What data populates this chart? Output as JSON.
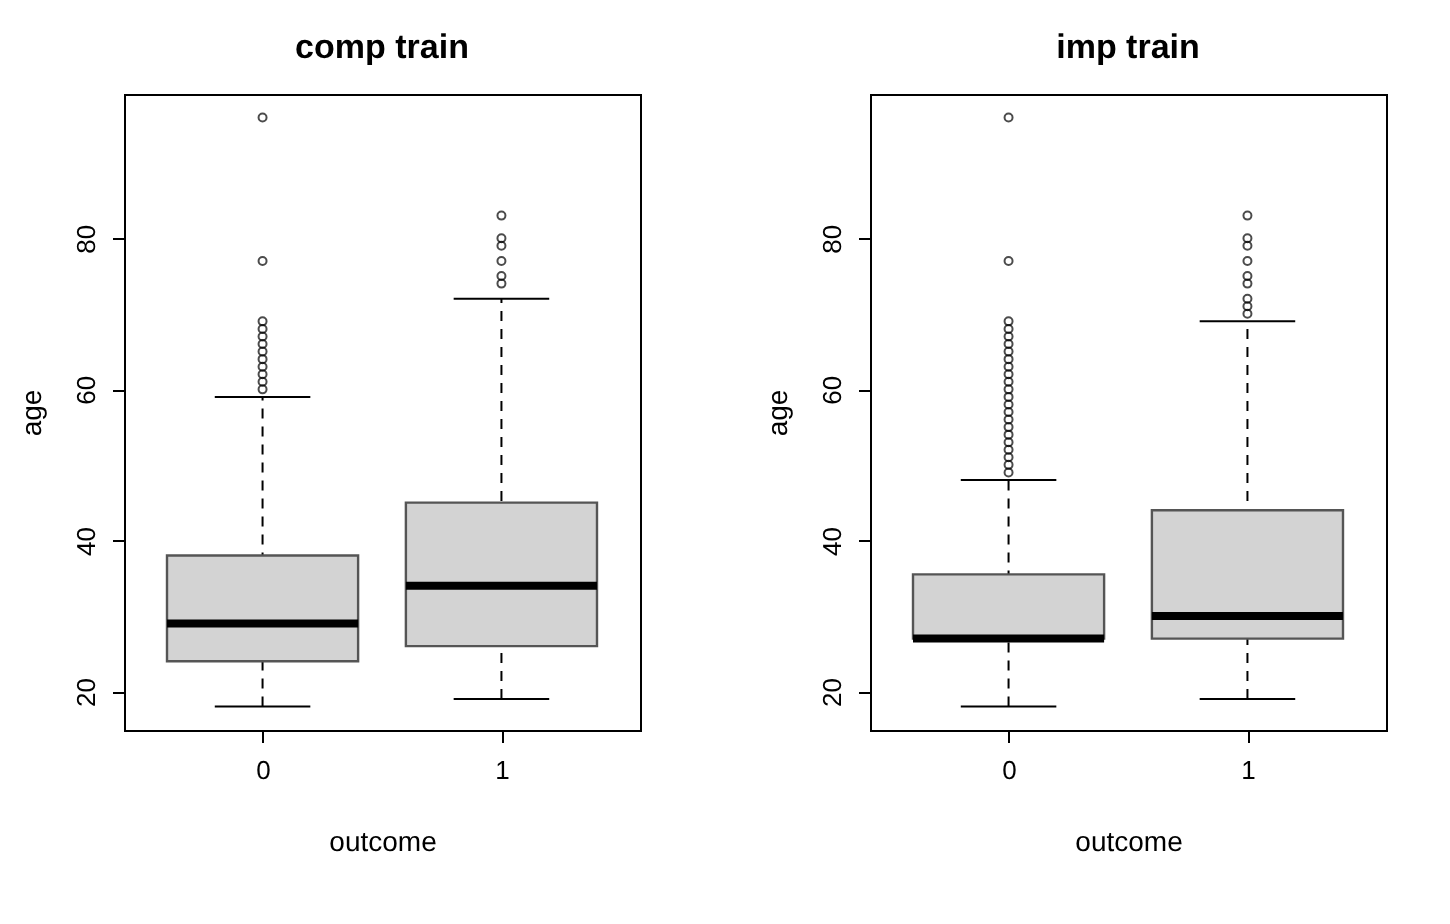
{
  "chart_data": [
    {
      "type": "box",
      "title": "comp train",
      "xlabel": "outcome",
      "ylabel": "age",
      "categories": [
        "0",
        "1"
      ],
      "ylim": [
        14.9,
        99.1
      ],
      "yticks": [
        20,
        40,
        60,
        80
      ],
      "grid": false,
      "color": "#d3d3d3",
      "boxes": [
        {
          "low": 18,
          "q1": 24,
          "median": 29,
          "q3": 38,
          "high": 59,
          "outliers": [
            60,
            61,
            62,
            63,
            64,
            65,
            66,
            67,
            68,
            69,
            77,
            96
          ]
        },
        {
          "low": 19,
          "q1": 26,
          "median": 34,
          "q3": 45,
          "high": 72,
          "outliers": [
            74,
            75,
            77,
            79,
            80,
            83
          ]
        }
      ]
    },
    {
      "type": "box",
      "title": "imp train",
      "xlabel": "outcome",
      "ylabel": "age",
      "categories": [
        "0",
        "1"
      ],
      "ylim": [
        14.9,
        99.1
      ],
      "yticks": [
        20,
        40,
        60,
        80
      ],
      "grid": false,
      "color": "#d3d3d3",
      "boxes": [
        {
          "low": 18,
          "q1": 27,
          "median": 27,
          "q3": 35.5,
          "high": 48,
          "outliers": [
            49,
            50,
            51,
            52,
            53,
            54,
            55,
            56,
            57,
            58,
            59,
            60,
            61,
            62,
            63,
            64,
            65,
            66,
            67,
            68,
            69,
            77,
            96
          ]
        },
        {
          "low": 19,
          "q1": 27,
          "median": 30,
          "q3": 44,
          "high": 69,
          "outliers": [
            70,
            71,
            72,
            74,
            75,
            77,
            79,
            80,
            83
          ]
        }
      ]
    }
  ]
}
